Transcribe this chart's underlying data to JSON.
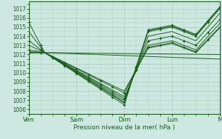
{
  "bg_color": "#cce8e0",
  "grid_color": "#aaccbb",
  "line_color": "#1a5c1a",
  "dot_color": "#1a5c1a",
  "xlabel": "Pression niveau de la mer( hPa )",
  "xtick_labels": [
    "Ven",
    "Sam",
    "Dim",
    "Lun",
    "M"
  ],
  "xtick_positions": [
    0,
    24,
    48,
    72,
    96
  ],
  "ylim": [
    1005.5,
    1017.8
  ],
  "yticks": [
    1006,
    1007,
    1008,
    1009,
    1010,
    1011,
    1012,
    1013,
    1014,
    1015,
    1016,
    1017
  ],
  "series": [
    {
      "points": [
        [
          0,
          1015.5
        ],
        [
          4,
          1014.5
        ],
        [
          8,
          1013.5
        ],
        [
          12,
          1012.8
        ],
        [
          16,
          1012.5
        ],
        [
          20,
          1012.3
        ],
        [
          24,
          1012.2
        ],
        [
          48,
          1006.5
        ],
        [
          72,
          1015.2
        ],
        [
          84,
          1014.0
        ],
        [
          96,
          1017.2
        ]
      ],
      "has_markers": true,
      "style": "line"
    },
    {
      "points": [
        [
          0,
          1014.5
        ],
        [
          24,
          1012.2
        ],
        [
          48,
          1006.8
        ],
        [
          72,
          1015.1
        ],
        [
          96,
          1017.1
        ]
      ],
      "has_markers": false,
      "style": "line"
    },
    {
      "points": [
        [
          0,
          1013.5
        ],
        [
          24,
          1012.2
        ],
        [
          48,
          1006.9
        ],
        [
          72,
          1015.0
        ],
        [
          96,
          1017.0
        ]
      ],
      "has_markers": true,
      "style": "line"
    },
    {
      "points": [
        [
          0,
          1013.0
        ],
        [
          24,
          1012.2
        ],
        [
          48,
          1007.0
        ],
        [
          72,
          1014.5
        ],
        [
          96,
          1016.5
        ]
      ],
      "has_markers": false,
      "style": "line"
    },
    {
      "points": [
        [
          0,
          1012.5
        ],
        [
          24,
          1012.2
        ],
        [
          48,
          1007.2
        ],
        [
          72,
          1014.0
        ],
        [
          96,
          1015.8
        ]
      ],
      "has_markers": true,
      "style": "line"
    },
    {
      "points": [
        [
          0,
          1012.3
        ],
        [
          24,
          1012.2
        ],
        [
          48,
          1007.3
        ],
        [
          72,
          1013.5
        ],
        [
          96,
          1015.4
        ]
      ],
      "has_markers": false,
      "style": "line"
    },
    {
      "points": [
        [
          0,
          1012.2
        ],
        [
          24,
          1012.2
        ],
        [
          48,
          1007.8
        ],
        [
          72,
          1013.3
        ],
        [
          96,
          1015.0
        ]
      ],
      "has_markers": true,
      "style": "line"
    },
    {
      "points": [
        [
          0,
          1012.2
        ],
        [
          24,
          1012.2
        ],
        [
          48,
          1008.0
        ],
        [
          72,
          1013.2
        ],
        [
          96,
          1014.9
        ]
      ],
      "has_markers": false,
      "style": "line"
    },
    {
      "points": [
        [
          0,
          1012.2
        ],
        [
          24,
          1012.2
        ],
        [
          48,
          1011.5
        ],
        [
          96,
          1012.0
        ]
      ],
      "has_markers": false,
      "style": "flat"
    },
    {
      "points": [
        [
          0,
          1012.2
        ],
        [
          24,
          1012.2
        ],
        [
          72,
          1012.0
        ],
        [
          96,
          1012.0
        ]
      ],
      "has_markers": false,
      "style": "flat"
    }
  ],
  "figsize": [
    3.2,
    2.0
  ],
  "dpi": 100
}
